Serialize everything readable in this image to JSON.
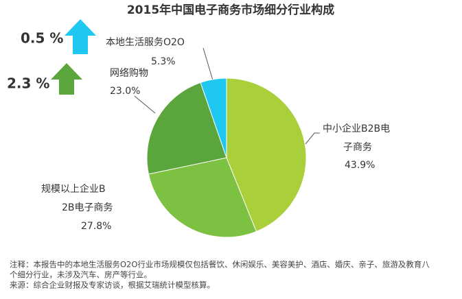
{
  "chart_data": {
    "type": "pie",
    "title": "2015年中国电子商务市场细分行业构成",
    "categories": [
      "中小企业B2B电子商务",
      "规模以上企业B2B电子商务",
      "网络购物",
      "本地生活服务O2O"
    ],
    "values": [
      43.9,
      27.8,
      23.0,
      5.3
    ],
    "value_labels": [
      "43.9%",
      "27.8%",
      "23.0%",
      "5.3%"
    ],
    "colors": [
      "#a9cf3b",
      "#7dc143",
      "#5ba63c",
      "#1ec8f0"
    ],
    "annotations": [
      {
        "value": 0.5,
        "label": "0.5 %",
        "color": "#1ec8f0"
      },
      {
        "value": 2.3,
        "label": "2.3 %",
        "color": "#5ba63c"
      }
    ],
    "notes": [
      "注释：本报告中的本地生活服务O2O行业市场规模仅包括餐饮、休闲娱乐、美容美护、酒店、婚庆、亲子、旅游及教育八",
      "个细分行业，未涉及汽车、房产等行业。",
      "来源：综合企业财报及专家访谈，根据艾瑞统计模型核算。"
    ]
  }
}
